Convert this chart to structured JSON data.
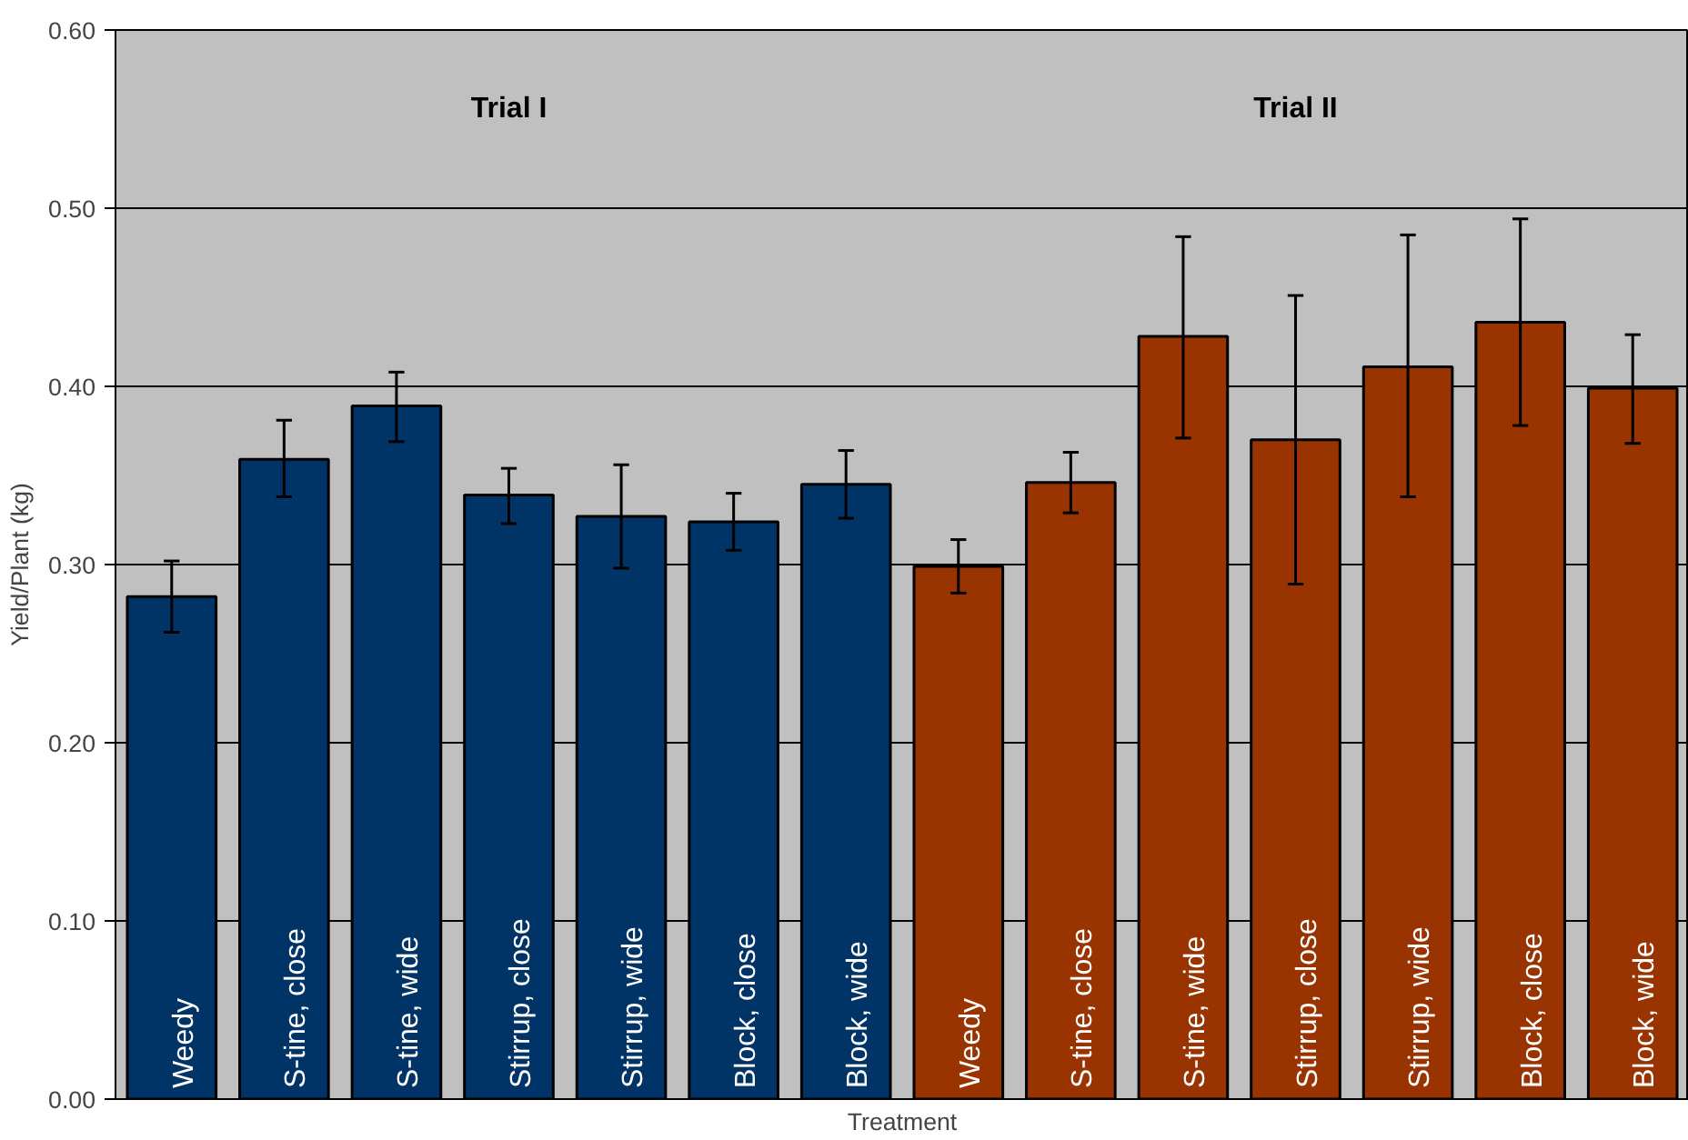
{
  "chart_data": {
    "type": "bar",
    "xlabel": "Treatment",
    "ylabel": "Yield/Plant (kg)",
    "categories": [
      "Weedy",
      "S-tine, close",
      "S-tine, wide",
      "Stirrup, close",
      "Stirrup, wide",
      "Block, close",
      "Block, wide",
      "Weedy",
      "S-tine, close",
      "S-tine, wide",
      "Stirrup, close",
      "Stirrup, wide",
      "Block, close",
      "Block, wide"
    ],
    "series": [
      {
        "color": "#003366",
        "values": [
          0.282,
          0.359,
          0.389,
          0.339,
          0.327,
          0.324,
          0.345,
          null,
          null,
          null,
          null,
          null,
          null,
          null
        ],
        "errors": [
          [
            0.262,
            0.302
          ],
          [
            0.338,
            0.381
          ],
          [
            0.369,
            0.408
          ],
          [
            0.323,
            0.354
          ],
          [
            0.298,
            0.356
          ],
          [
            0.308,
            0.34
          ],
          [
            0.326,
            0.364
          ],
          null,
          null,
          null,
          null,
          null,
          null,
          null
        ]
      },
      {
        "color": "#993300",
        "values": [
          null,
          null,
          null,
          null,
          null,
          null,
          null,
          0.299,
          0.346,
          0.428,
          0.37,
          0.411,
          0.436,
          0.399
        ],
        "errors": [
          null,
          null,
          null,
          null,
          null,
          null,
          null,
          [
            0.284,
            0.314
          ],
          [
            0.329,
            0.363
          ],
          [
            0.371,
            0.484
          ],
          [
            0.289,
            0.451
          ],
          [
            0.338,
            0.485
          ],
          [
            0.378,
            0.494
          ],
          [
            0.368,
            0.429
          ]
        ]
      }
    ],
    "ylim": [
      0,
      0.6
    ],
    "yticks": [
      {
        "value": 0,
        "label": "0.00"
      },
      {
        "value": 0.1,
        "label": "0.10"
      },
      {
        "value": 0.2,
        "label": "0.20"
      },
      {
        "value": 0.3,
        "label": "0.30"
      },
      {
        "value": 0.4,
        "label": "0.40"
      },
      {
        "value": 0.5,
        "label": "0.50"
      },
      {
        "value": 0.6,
        "label": "0.60"
      }
    ],
    "grid": "y",
    "annotations": [
      "Trial I",
      "Trial II"
    ]
  }
}
